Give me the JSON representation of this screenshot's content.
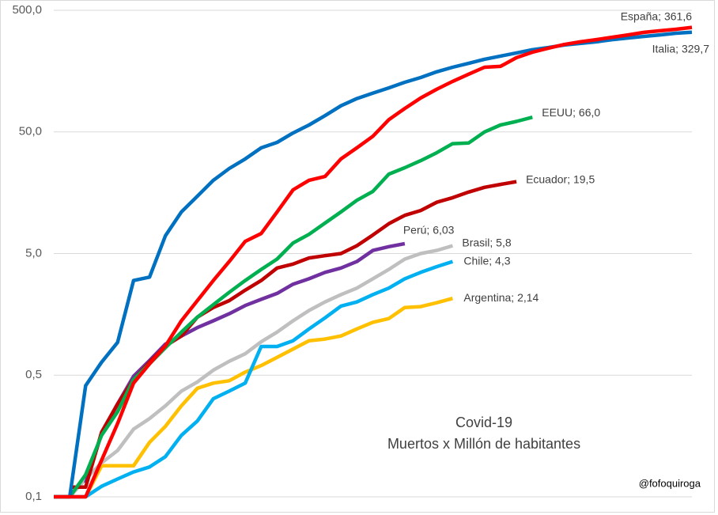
{
  "chart_data": {
    "type": "line",
    "title": "Covid-19",
    "subtitle": "Muertos x Millón de habitantes",
    "annotation": "@fofoquiroga",
    "log": true,
    "grid": true,
    "categories": [
      null,
      null,
      null,
      null,
      null,
      null,
      null,
      null,
      null,
      null,
      null,
      null,
      null,
      null,
      null,
      null,
      null,
      null,
      null,
      null,
      null,
      null,
      null,
      null,
      null,
      null,
      null,
      null,
      null,
      null,
      null,
      null,
      null,
      null,
      null,
      null,
      null,
      null,
      null,
      null,
      null
    ],
    "ylim": [
      0.05,
      500
    ],
    "yticks": [
      {
        "value": 0.05,
        "label": "0,1"
      },
      {
        "value": 0.5,
        "label": "0,5"
      },
      {
        "value": 5,
        "label": "5,0"
      },
      {
        "value": 50,
        "label": "50,0"
      },
      {
        "value": 500,
        "label": "500,0"
      }
    ],
    "series": [
      {
        "color": "#ffc000",
        "values": [
          null,
          null,
          0.05,
          0.09,
          0.09,
          0.09,
          0.14,
          0.19,
          0.28,
          0.39,
          0.43,
          0.45,
          0.53,
          0.6,
          0.7,
          0.82,
          0.96,
          0.99,
          1.05,
          1.2,
          1.36,
          1.46,
          1.8,
          1.83,
          1.97,
          2.14,
          null,
          null,
          null,
          null,
          null,
          null,
          null,
          null,
          null,
          null,
          null,
          null,
          null,
          null,
          null
        ],
        "value_labels": [
          null,
          null,
          null,
          null,
          null,
          null,
          null,
          null,
          null,
          null,
          null,
          null,
          null,
          null,
          null,
          null,
          null,
          null,
          null,
          null,
          null,
          null,
          null,
          null,
          null,
          "Argentina; 2,14",
          null,
          null,
          null,
          null,
          null,
          null,
          null,
          null,
          null,
          null,
          null,
          null,
          null,
          null,
          null
        ]
      },
      {
        "color": "#00b0f0",
        "values": [
          0.05,
          0.05,
          0.05,
          0.061,
          0.07,
          0.08,
          0.088,
          0.107,
          0.16,
          0.21,
          0.32,
          0.37,
          0.43,
          0.86,
          0.86,
          0.96,
          1.2,
          1.48,
          1.85,
          2.0,
          2.3,
          2.6,
          3.1,
          3.5,
          3.9,
          4.3,
          null,
          null,
          null,
          null,
          null,
          null,
          null,
          null,
          null,
          null,
          null,
          null,
          null,
          null,
          null
        ],
        "value_labels": [
          null,
          null,
          null,
          null,
          null,
          null,
          null,
          null,
          null,
          null,
          null,
          null,
          null,
          null,
          null,
          null,
          null,
          null,
          null,
          null,
          null,
          null,
          null,
          null,
          null,
          "Chile; 4,3",
          null,
          null,
          null,
          null,
          null,
          null,
          null,
          null,
          null,
          null,
          null,
          null,
          null,
          null,
          null
        ]
      },
      {
        "color": "#bfbfbf",
        "values": [
          null,
          0.05,
          0.07,
          0.095,
          0.12,
          0.18,
          0.22,
          0.28,
          0.37,
          0.44,
          0.55,
          0.65,
          0.75,
          0.94,
          1.13,
          1.4,
          1.7,
          2.0,
          2.3,
          2.6,
          3.1,
          3.7,
          4.5,
          5.0,
          5.3,
          5.8,
          null,
          null,
          null,
          null,
          null,
          null,
          null,
          null,
          null,
          null,
          null,
          null,
          null,
          null,
          null
        ],
        "value_labels": [
          null,
          null,
          null,
          null,
          null,
          null,
          null,
          null,
          null,
          null,
          null,
          null,
          null,
          null,
          null,
          null,
          null,
          null,
          null,
          null,
          null,
          null,
          null,
          null,
          null,
          "Brasil; 5,8",
          null,
          null,
          null,
          null,
          null,
          null,
          null,
          null,
          null,
          null,
          null,
          null,
          null,
          null,
          null
        ]
      },
      {
        "color": "#7030a0",
        "values": [
          null,
          null,
          0.065,
          0.165,
          0.29,
          0.49,
          0.66,
          0.9,
          1.05,
          1.23,
          1.4,
          1.6,
          1.87,
          2.1,
          2.35,
          2.8,
          3.1,
          3.5,
          3.8,
          4.3,
          5.3,
          5.7,
          6.03,
          null,
          null,
          null,
          null,
          null,
          null,
          null,
          null,
          null,
          null,
          null,
          null,
          null,
          null,
          null,
          null,
          null,
          null
        ],
        "value_labels": [
          null,
          null,
          null,
          null,
          null,
          null,
          null,
          null,
          null,
          null,
          null,
          null,
          null,
          null,
          null,
          null,
          null,
          null,
          null,
          null,
          null,
          null,
          "Perú; 6,03",
          null,
          null,
          null,
          null,
          null,
          null,
          null,
          null,
          null,
          null,
          null,
          null,
          null,
          null,
          null,
          null,
          null,
          null
        ]
      },
      {
        "color": "#c00000",
        "values": [
          null,
          0.06,
          0.06,
          0.17,
          0.29,
          0.46,
          0.64,
          0.87,
          1.05,
          1.5,
          1.8,
          2.05,
          2.5,
          3.0,
          3.8,
          4.1,
          4.6,
          4.8,
          5.0,
          5.8,
          7.1,
          8.8,
          10.3,
          11.3,
          13.2,
          14.4,
          16,
          17.5,
          18.5,
          19.5,
          null,
          null,
          null,
          null,
          null,
          null,
          null,
          null,
          null,
          null,
          null
        ],
        "value_labels": [
          null,
          null,
          null,
          null,
          null,
          null,
          null,
          null,
          null,
          null,
          null,
          null,
          null,
          null,
          null,
          null,
          null,
          null,
          null,
          null,
          null,
          null,
          null,
          null,
          null,
          null,
          null,
          null,
          null,
          "Ecuador; 19,5",
          null,
          null,
          null,
          null,
          null,
          null,
          null,
          null,
          null,
          null,
          null
        ]
      },
      {
        "color": "#00b050",
        "values": [
          0.05,
          0.05,
          0.076,
          0.16,
          0.25,
          0.46,
          0.62,
          0.84,
          1.13,
          1.5,
          1.9,
          2.4,
          3.0,
          3.7,
          4.5,
          6.1,
          7.2,
          8.9,
          11,
          13.7,
          16.2,
          22.5,
          25.4,
          29,
          33.7,
          40,
          40.5,
          50,
          57,
          61,
          66.0,
          null,
          null,
          null,
          null,
          null,
          null,
          null,
          null,
          null,
          null
        ],
        "value_labels": [
          null,
          null,
          null,
          null,
          null,
          null,
          null,
          null,
          null,
          null,
          null,
          null,
          null,
          null,
          null,
          null,
          null,
          null,
          null,
          null,
          null,
          null,
          null,
          null,
          null,
          null,
          null,
          null,
          null,
          null,
          "EEUU; 66,0",
          null,
          null,
          null,
          null,
          null,
          null,
          null,
          null,
          null,
          null
        ]
      },
      {
        "color": "#0070c0",
        "values": [
          0.05,
          0.05,
          0.41,
          0.64,
          0.93,
          3.0,
          3.2,
          7.0,
          11,
          14.8,
          20,
          25,
          30,
          37,
          41,
          49,
          57,
          68,
          82,
          94,
          104,
          115,
          128,
          140,
          156,
          170,
          183,
          198,
          210,
          223,
          237,
          247,
          259,
          267,
          275,
          287,
          296,
          305,
          314,
          324,
          329.7
        ],
        "value_labels": [
          null,
          null,
          null,
          null,
          null,
          null,
          null,
          null,
          null,
          null,
          null,
          null,
          null,
          null,
          null,
          null,
          null,
          null,
          null,
          null,
          null,
          null,
          null,
          null,
          null,
          null,
          null,
          null,
          null,
          null,
          null,
          null,
          null,
          null,
          null,
          null,
          null,
          null,
          null,
          null,
          "Italia; 329,7"
        ]
      },
      {
        "color": "#ff0000",
        "values": [
          0.05,
          0.05,
          0.05,
          0.1,
          0.2,
          0.43,
          0.62,
          0.87,
          1.4,
          2.05,
          3.0,
          4.3,
          6.3,
          7.3,
          11,
          16.7,
          20,
          21.5,
          30,
          37,
          46,
          63,
          78,
          95,
          112,
          130,
          149,
          170,
          173,
          204,
          226,
          244,
          262,
          275,
          287,
          300,
          314,
          329,
          339,
          349,
          361.6
        ],
        "value_labels": [
          null,
          null,
          null,
          null,
          null,
          null,
          null,
          null,
          null,
          null,
          null,
          null,
          null,
          null,
          null,
          null,
          null,
          null,
          null,
          null,
          null,
          null,
          null,
          null,
          null,
          null,
          null,
          null,
          null,
          null,
          null,
          null,
          null,
          null,
          null,
          null,
          null,
          null,
          null,
          null,
          "España; 361,6"
        ]
      }
    ]
  }
}
